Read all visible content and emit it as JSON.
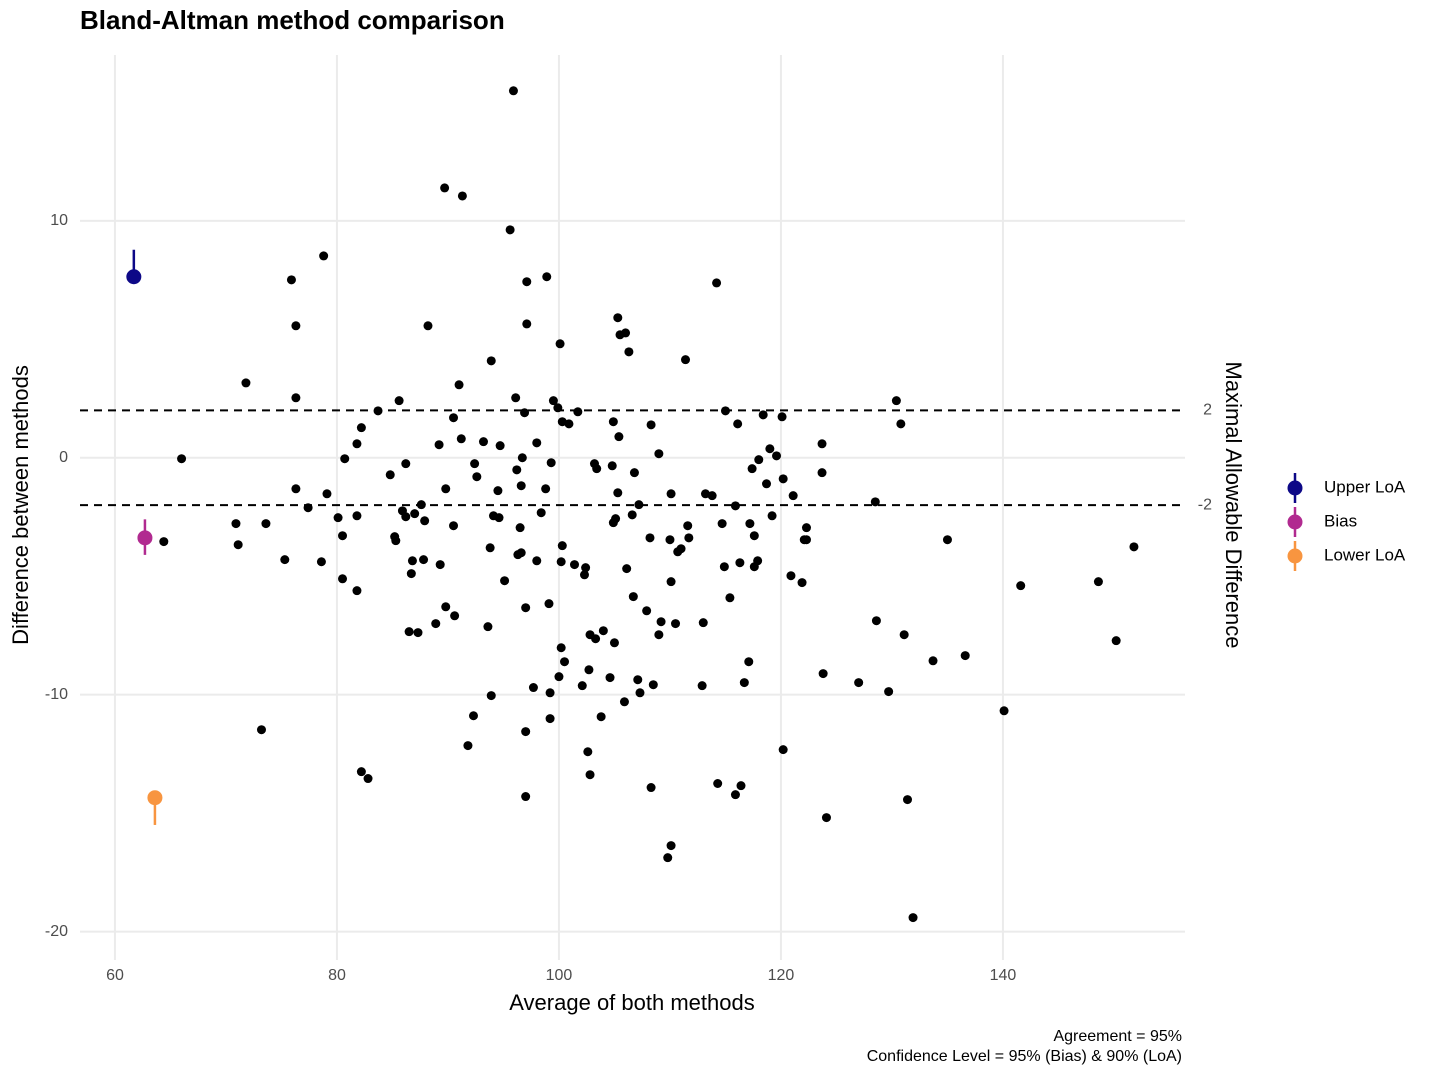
{
  "chart_data": {
    "type": "scatter",
    "title": "Bland-Altman method comparison",
    "x_label": "Average of both methods",
    "y_label": "Difference between methods",
    "y2_label": "Maximal Allowable Difference",
    "xlim": [
      56.85,
      156.4
    ],
    "ylim": [
      -21.2,
      17.0
    ],
    "xticks": [
      60,
      80,
      100,
      120,
      140
    ],
    "yticks": [
      -20,
      -10,
      0,
      10
    ],
    "y2lim": [
      -21.2,
      17.0
    ],
    "y2ticks": [
      -2,
      2
    ],
    "reference_lines": [
      2,
      -2
    ],
    "grid": true,
    "legend_position": "right",
    "color": "#000000",
    "x": [
      64.4,
      66.0,
      70.9,
      71.1,
      71.8,
      73.2,
      73.6,
      75.3,
      75.9,
      76.3,
      76.3,
      76.3,
      77.4,
      78.6,
      78.8,
      79.1,
      80.1,
      80.5,
      80.5,
      80.7,
      81.8,
      81.8,
      81.8,
      82.2,
      82.2,
      82.8,
      83.7,
      84.8,
      85.2,
      85.3,
      85.6,
      85.9,
      86.2,
      86.2,
      86.5,
      86.7,
      86.8,
      87.0,
      87.3,
      87.6,
      87.8,
      87.9,
      88.2,
      88.9,
      89.2,
      89.3,
      89.7,
      89.8,
      89.8,
      90.5,
      90.5,
      90.6,
      91.0,
      91.2,
      91.3,
      91.8,
      92.3,
      92.4,
      92.6,
      93.2,
      93.6,
      93.8,
      93.9,
      93.9,
      94.1,
      94.5,
      94.6,
      94.7,
      95.1,
      95.6,
      95.9,
      96.1,
      96.2,
      96.3,
      96.5,
      96.6,
      96.6,
      96.7,
      96.9,
      97.0,
      97.0,
      97.0,
      97.1,
      97.1,
      97.7,
      98.0,
      98.0,
      98.4,
      98.8,
      98.9,
      99.1,
      99.2,
      99.2,
      99.3,
      99.5,
      99.9,
      100.0,
      100.1,
      100.2,
      100.2,
      100.3,
      100.3,
      100.5,
      100.9,
      101.4,
      101.7,
      102.1,
      102.3,
      102.4,
      102.6,
      102.7,
      102.8,
      102.8,
      103.2,
      103.3,
      103.4,
      103.8,
      104.0,
      104.6,
      104.8,
      104.9,
      104.9,
      105.0,
      105.1,
      105.3,
      105.3,
      105.4,
      105.5,
      106.0,
      105.9,
      106.1,
      106.3,
      106.6,
      106.7,
      106.8,
      107.1,
      107.2,
      107.3,
      107.9,
      108.2,
      108.3,
      108.3,
      108.5,
      109.0,
      109.0,
      109.2,
      109.8,
      110.0,
      110.1,
      110.1,
      110.1,
      110.5,
      110.7,
      111.0,
      111.4,
      111.6,
      111.7,
      112.9,
      113.0,
      113.2,
      113.8,
      114.2,
      114.3,
      114.7,
      114.9,
      115.0,
      115.4,
      115.9,
      115.9,
      116.1,
      116.3,
      116.4,
      116.7,
      117.1,
      117.2,
      117.4,
      117.6,
      117.6,
      117.9,
      118.0,
      118.4,
      118.7,
      119.0,
      119.2,
      119.6,
      120.1,
      120.2,
      120.2,
      120.9,
      121.1,
      121.9,
      122.1,
      122.3,
      122.3,
      123.7,
      123.7,
      123.8,
      124.1,
      127.0,
      128.5,
      128.6,
      129.7,
      130.4,
      130.8,
      131.1,
      131.4,
      131.9,
      133.7,
      135.0,
      136.6,
      140.1,
      141.6,
      148.6,
      150.2,
      151.8
    ],
    "values": [
      -3.54,
      -0.04,
      -2.78,
      -3.67,
      3.16,
      -11.48,
      -2.78,
      -4.3,
      7.51,
      5.57,
      2.53,
      -1.31,
      -2.11,
      -4.39,
      8.52,
      -1.52,
      -2.53,
      -3.29,
      -5.11,
      -0.04,
      0.59,
      -2.45,
      -5.61,
      1.27,
      -13.25,
      -13.54,
      1.98,
      -0.72,
      -3.33,
      -3.5,
      2.41,
      -2.24,
      -0.25,
      -2.49,
      -7.34,
      -4.89,
      -4.35,
      -2.36,
      -7.38,
      -1.98,
      -4.3,
      -2.66,
      5.57,
      -7.0,
      0.55,
      -4.51,
      11.39,
      -6.29,
      -1.31,
      1.69,
      -2.87,
      -6.67,
      3.08,
      0.8,
      11.05,
      -12.15,
      -10.89,
      -0.25,
      -0.8,
      0.68,
      -7.13,
      -3.8,
      4.09,
      -10.04,
      -2.45,
      -1.39,
      -2.53,
      0.51,
      -5.19,
      9.62,
      15.49,
      2.53,
      -0.51,
      -4.09,
      -2.95,
      -4.01,
      -1.18,
      0.0,
      1.9,
      -11.56,
      -6.33,
      -14.3,
      5.65,
      7.43,
      -9.7,
      0.63,
      -4.35,
      -2.32,
      -1.31,
      7.64,
      -6.16,
      -11.01,
      -9.92,
      -0.21,
      2.41,
      2.11,
      -9.24,
      4.81,
      -8.02,
      -4.39,
      -3.71,
      1.52,
      -8.61,
      1.43,
      -4.51,
      1.94,
      -9.62,
      -4.94,
      -4.64,
      -12.41,
      -8.95,
      -7.47,
      -13.38,
      -0.25,
      -7.64,
      -0.46,
      -10.93,
      -7.3,
      -9.28,
      -0.34,
      1.52,
      -2.74,
      -7.81,
      -2.57,
      5.91,
      -1.48,
      0.89,
      5.19,
      5.27,
      -10.3,
      -4.68,
      4.47,
      -2.41,
      -5.86,
      -0.63,
      -9.37,
      -1.98,
      -9.92,
      -6.46,
      -3.38,
      1.39,
      -13.92,
      -9.58,
      0.17,
      -7.47,
      -6.92,
      -16.88,
      -3.46,
      -16.37,
      -5.23,
      -1.52,
      -7.0,
      -3.97,
      -3.84,
      4.14,
      -2.87,
      -3.38,
      -9.62,
      -6.96,
      -1.52,
      -1.6,
      7.38,
      -13.75,
      -2.78,
      -4.6,
      1.98,
      -5.91,
      -2.03,
      -14.22,
      1.43,
      -4.43,
      -13.84,
      -9.49,
      -8.61,
      -2.78,
      -0.46,
      -3.29,
      -4.6,
      -4.35,
      -0.08,
      1.81,
      -1.1,
      0.38,
      -2.45,
      0.08,
      1.73,
      -0.89,
      -12.32,
      -4.98,
      -1.6,
      -5.27,
      -3.46,
      -2.95,
      -3.46,
      0.59,
      -0.63,
      -9.11,
      -15.19,
      -9.49,
      -1.86,
      -6.88,
      -9.87,
      2.41,
      1.43,
      -7.47,
      -14.43,
      -19.41,
      -8.57,
      -3.46,
      -8.35,
      -10.68,
      -5.4,
      -5.23,
      -7.72,
      -3.76
    ],
    "limits": [
      {
        "name": "Upper LoA",
        "color": "#0d0887",
        "x": 61.7,
        "value": 7.64,
        "ci_low": 7.64,
        "ci_high": 8.78
      },
      {
        "name": "Bias",
        "color": "#b12a90",
        "x": 62.7,
        "value": -3.38,
        "ci_low": -4.1,
        "ci_high": -2.6
      },
      {
        "name": "Lower LoA",
        "color": "#f89540",
        "x": 63.6,
        "value": -14.35,
        "ci_low": -15.5,
        "ci_high": -14.35
      }
    ],
    "annotations": [
      "Agreement = 95%",
      "Confidence Level = 95% (Bias) & 90% (LoA)"
    ]
  }
}
